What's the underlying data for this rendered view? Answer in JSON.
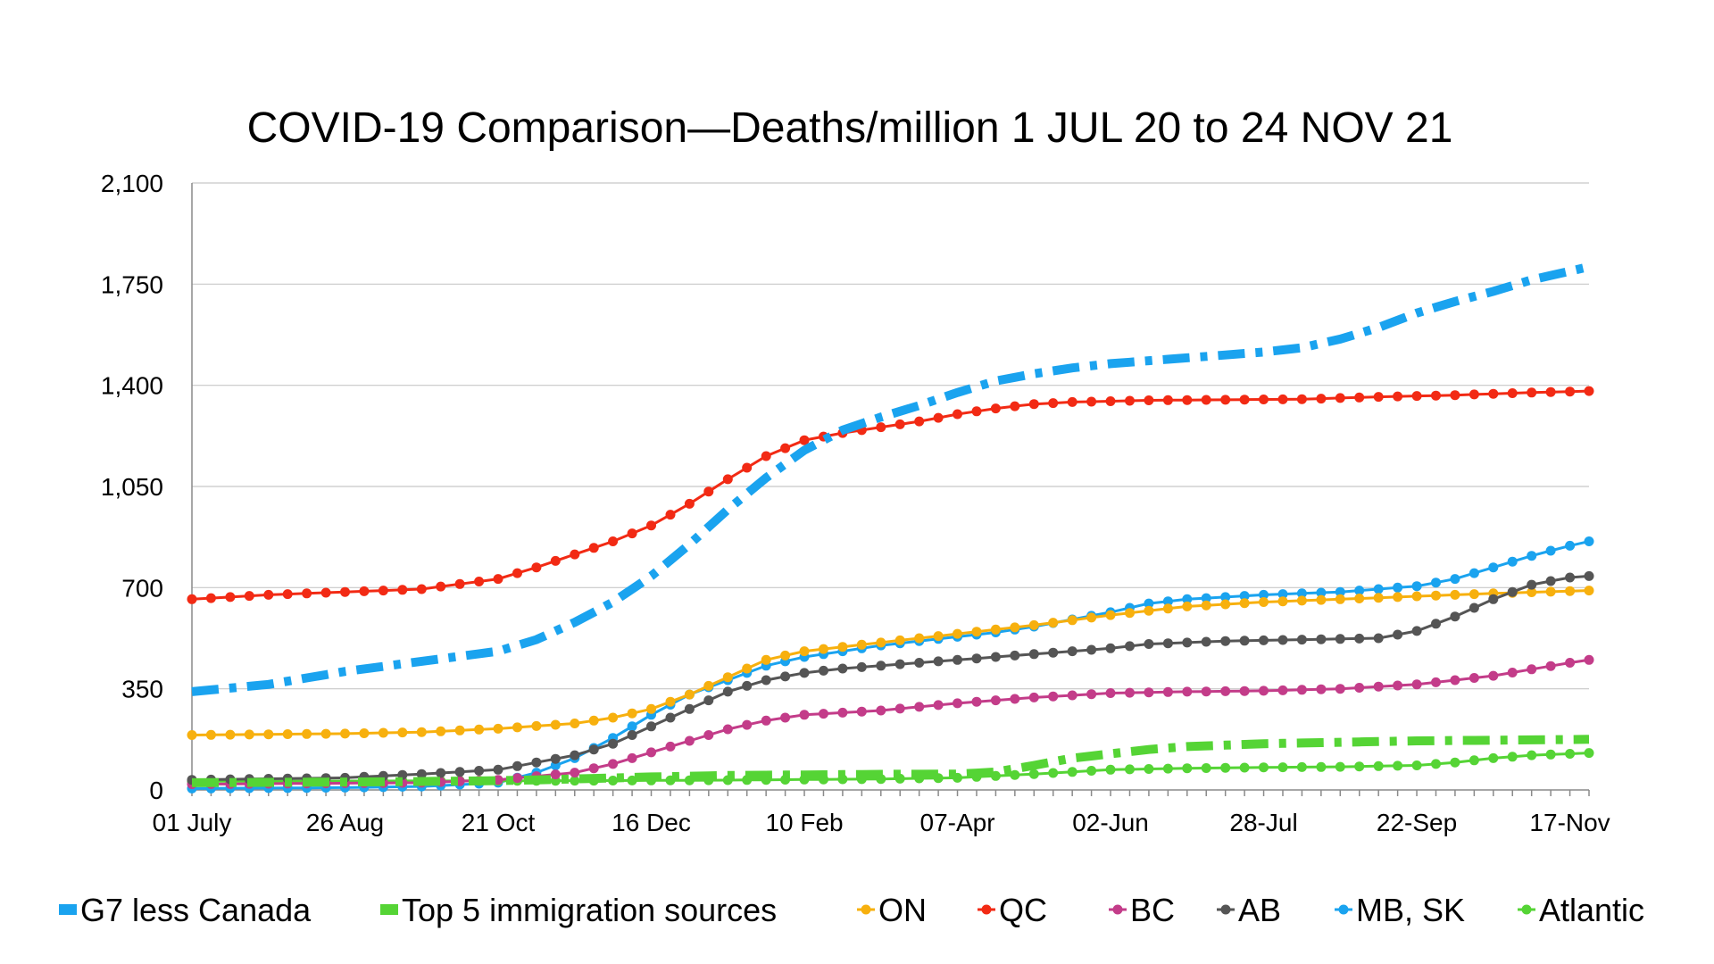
{
  "chart_data": {
    "type": "line",
    "title": "COVID-19 Comparison—Deaths/million 1 JUL 20 to 24 NOV 21",
    "xlabel": "",
    "ylabel": "",
    "ylim": [
      0,
      2100
    ],
    "y_ticks": [
      0,
      350,
      700,
      1050,
      1400,
      1750,
      2100
    ],
    "y_tick_labels": [
      "0",
      "350",
      "700",
      "1,050",
      "1,400",
      "1,750",
      "2,100"
    ],
    "x_ticks": [
      {
        "week": 0,
        "label": "01 July"
      },
      {
        "week": 8,
        "label": "26 Aug"
      },
      {
        "week": 16,
        "label": "21 Oct"
      },
      {
        "week": 24,
        "label": "16 Dec"
      },
      {
        "week": 32,
        "label": "10 Feb"
      },
      {
        "week": 40,
        "label": "07-Apr"
      },
      {
        "week": 48,
        "label": "02-Jun"
      },
      {
        "week": 56,
        "label": "28-Jul"
      },
      {
        "week": 64,
        "label": "22-Sep"
      },
      {
        "week": 72,
        "label": "17-Nov"
      }
    ],
    "grid": true,
    "legend_position": "bottom",
    "series": [
      {
        "name": "G7 less Canada",
        "color": "#1aa3ef",
        "style": "dashdot",
        "keypoints": [
          [
            0,
            340
          ],
          [
            4,
            365
          ],
          [
            8,
            410
          ],
          [
            12,
            445
          ],
          [
            16,
            480
          ],
          [
            18,
            520
          ],
          [
            20,
            580
          ],
          [
            22,
            650
          ],
          [
            24,
            740
          ],
          [
            26,
            850
          ],
          [
            28,
            970
          ],
          [
            30,
            1080
          ],
          [
            32,
            1175
          ],
          [
            34,
            1245
          ],
          [
            36,
            1290
          ],
          [
            38,
            1330
          ],
          [
            40,
            1375
          ],
          [
            42,
            1415
          ],
          [
            44,
            1440
          ],
          [
            46,
            1460
          ],
          [
            48,
            1475
          ],
          [
            50,
            1485
          ],
          [
            52,
            1495
          ],
          [
            54,
            1505
          ],
          [
            56,
            1515
          ],
          [
            58,
            1530
          ],
          [
            60,
            1560
          ],
          [
            62,
            1600
          ],
          [
            64,
            1650
          ],
          [
            66,
            1690
          ],
          [
            68,
            1725
          ],
          [
            70,
            1765
          ],
          [
            72,
            1795
          ],
          [
            73,
            1810
          ]
        ]
      },
      {
        "name": "Top 5 immigration sources",
        "color": "#55d435",
        "style": "dashdot",
        "keypoints": [
          [
            0,
            25
          ],
          [
            10,
            28
          ],
          [
            16,
            32
          ],
          [
            20,
            38
          ],
          [
            24,
            45
          ],
          [
            28,
            50
          ],
          [
            32,
            52
          ],
          [
            36,
            54
          ],
          [
            40,
            55
          ],
          [
            42,
            62
          ],
          [
            44,
            85
          ],
          [
            46,
            110
          ],
          [
            48,
            125
          ],
          [
            50,
            140
          ],
          [
            52,
            150
          ],
          [
            56,
            160
          ],
          [
            60,
            165
          ],
          [
            64,
            170
          ],
          [
            68,
            172
          ],
          [
            73,
            175
          ]
        ]
      },
      {
        "name": "ON",
        "color": "#f7b00e",
        "style": "dotted",
        "keypoints": [
          [
            0,
            190
          ],
          [
            8,
            195
          ],
          [
            12,
            200
          ],
          [
            16,
            212
          ],
          [
            20,
            230
          ],
          [
            22,
            250
          ],
          [
            24,
            280
          ],
          [
            26,
            330
          ],
          [
            28,
            390
          ],
          [
            30,
            450
          ],
          [
            32,
            480
          ],
          [
            36,
            510
          ],
          [
            40,
            540
          ],
          [
            44,
            570
          ],
          [
            48,
            605
          ],
          [
            52,
            635
          ],
          [
            56,
            650
          ],
          [
            60,
            660
          ],
          [
            64,
            670
          ],
          [
            68,
            680
          ],
          [
            73,
            690
          ]
        ]
      },
      {
        "name": "QC",
        "color": "#f22a14",
        "style": "dotted",
        "keypoints": [
          [
            0,
            660
          ],
          [
            4,
            675
          ],
          [
            8,
            685
          ],
          [
            12,
            695
          ],
          [
            16,
            730
          ],
          [
            18,
            770
          ],
          [
            20,
            815
          ],
          [
            22,
            860
          ],
          [
            24,
            915
          ],
          [
            26,
            990
          ],
          [
            28,
            1075
          ],
          [
            30,
            1155
          ],
          [
            32,
            1210
          ],
          [
            34,
            1235
          ],
          [
            36,
            1255
          ],
          [
            38,
            1275
          ],
          [
            40,
            1300
          ],
          [
            42,
            1320
          ],
          [
            44,
            1335
          ],
          [
            46,
            1342
          ],
          [
            50,
            1348
          ],
          [
            54,
            1350
          ],
          [
            58,
            1352
          ],
          [
            62,
            1360
          ],
          [
            66,
            1366
          ],
          [
            70,
            1375
          ],
          [
            73,
            1380
          ]
        ]
      },
      {
        "name": "BC",
        "color": "#c33c89",
        "style": "dotted",
        "keypoints": [
          [
            0,
            20
          ],
          [
            12,
            25
          ],
          [
            16,
            35
          ],
          [
            20,
            60
          ],
          [
            22,
            90
          ],
          [
            24,
            130
          ],
          [
            26,
            170
          ],
          [
            28,
            210
          ],
          [
            30,
            240
          ],
          [
            32,
            260
          ],
          [
            36,
            275
          ],
          [
            40,
            300
          ],
          [
            44,
            320
          ],
          [
            48,
            335
          ],
          [
            52,
            340
          ],
          [
            56,
            343
          ],
          [
            60,
            350
          ],
          [
            64,
            365
          ],
          [
            68,
            395
          ],
          [
            72,
            440
          ],
          [
            73,
            450
          ]
        ]
      },
      {
        "name": "AB",
        "color": "#555555",
        "style": "dotted",
        "keypoints": [
          [
            0,
            35
          ],
          [
            8,
            42
          ],
          [
            12,
            55
          ],
          [
            16,
            70
          ],
          [
            18,
            95
          ],
          [
            20,
            120
          ],
          [
            22,
            160
          ],
          [
            24,
            220
          ],
          [
            26,
            280
          ],
          [
            28,
            340
          ],
          [
            30,
            380
          ],
          [
            32,
            405
          ],
          [
            34,
            420
          ],
          [
            36,
            430
          ],
          [
            38,
            440
          ],
          [
            40,
            450
          ],
          [
            44,
            470
          ],
          [
            48,
            490
          ],
          [
            50,
            505
          ],
          [
            54,
            515
          ],
          [
            58,
            520
          ],
          [
            62,
            525
          ],
          [
            64,
            550
          ],
          [
            66,
            600
          ],
          [
            68,
            660
          ],
          [
            70,
            710
          ],
          [
            72,
            735
          ],
          [
            73,
            740
          ]
        ]
      },
      {
        "name": "MB, SK",
        "color": "#1aa3ef",
        "style": "dotted",
        "keypoints": [
          [
            0,
            5
          ],
          [
            8,
            8
          ],
          [
            12,
            12
          ],
          [
            16,
            25
          ],
          [
            18,
            60
          ],
          [
            20,
            110
          ],
          [
            22,
            180
          ],
          [
            24,
            260
          ],
          [
            26,
            330
          ],
          [
            28,
            380
          ],
          [
            30,
            430
          ],
          [
            32,
            460
          ],
          [
            34,
            480
          ],
          [
            36,
            500
          ],
          [
            38,
            515
          ],
          [
            40,
            530
          ],
          [
            42,
            545
          ],
          [
            44,
            565
          ],
          [
            46,
            590
          ],
          [
            48,
            615
          ],
          [
            50,
            645
          ],
          [
            52,
            660
          ],
          [
            56,
            675
          ],
          [
            60,
            685
          ],
          [
            64,
            705
          ],
          [
            66,
            730
          ],
          [
            68,
            770
          ],
          [
            70,
            810
          ],
          [
            72,
            845
          ],
          [
            73,
            860
          ]
        ]
      },
      {
        "name": "Atlantic",
        "color": "#55d435",
        "style": "dotted",
        "keypoints": [
          [
            0,
            30
          ],
          [
            20,
            32
          ],
          [
            28,
            34
          ],
          [
            36,
            38
          ],
          [
            40,
            42
          ],
          [
            44,
            55
          ],
          [
            48,
            70
          ],
          [
            52,
            75
          ],
          [
            56,
            78
          ],
          [
            60,
            80
          ],
          [
            64,
            85
          ],
          [
            66,
            95
          ],
          [
            68,
            110
          ],
          [
            70,
            120
          ],
          [
            72,
            125
          ],
          [
            73,
            128
          ]
        ]
      }
    ]
  }
}
